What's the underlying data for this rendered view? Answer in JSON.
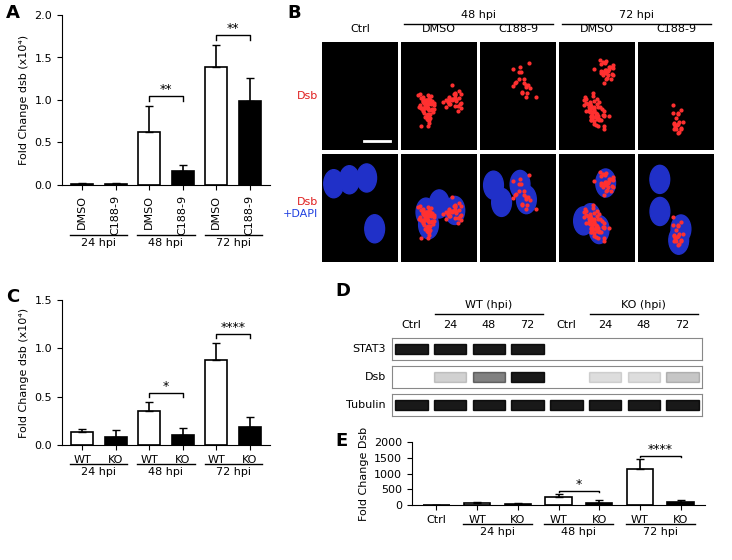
{
  "chart_data": [
    {
      "type": "bar",
      "title": "A",
      "y_label": "Fold Change dsb (x10⁴)",
      "categories": [
        "DMSO",
        "C188-9",
        "DMSO",
        "C188-9",
        "DMSO",
        "C188-9"
      ],
      "values": [
        0.01,
        0.01,
        0.62,
        0.17,
        1.39,
        0.99
      ],
      "errors": [
        0.01,
        0.01,
        0.31,
        0.06,
        0.26,
        0.27
      ],
      "colors": [
        "#ffffff",
        "#000000",
        "#ffffff",
        "#000000",
        "#ffffff",
        "#000000"
      ],
      "ylim": [
        0,
        2.0
      ],
      "yticks": [
        {
          "value": 0,
          "label": "0.0"
        },
        0.5,
        {
          "value": 1,
          "label": "1.0"
        },
        1.5,
        {
          "value": 2,
          "label": "2.0"
        }
      ],
      "groups": [
        {
          "label": "24 hpi",
          "members": [
            0,
            1
          ]
        },
        {
          "label": "48 hpi",
          "members": [
            2,
            3
          ]
        },
        {
          "label": "72 hpi",
          "members": [
            4,
            5
          ]
        }
      ],
      "significance": [
        {
          "text": "**",
          "between": [
            2,
            3
          ]
        },
        {
          "text": "**",
          "between": [
            4,
            5
          ]
        }
      ]
    },
    {
      "type": "bar",
      "title": "C",
      "y_label": "Fold Change dsb (x10⁴)",
      "categories": [
        "WT",
        "KO",
        "WT",
        "KO",
        "WT",
        "KO"
      ],
      "values": [
        0.13,
        0.08,
        0.35,
        0.1,
        0.88,
        0.19
      ],
      "errors": [
        0.04,
        0.08,
        0.1,
        0.08,
        0.18,
        0.1
      ],
      "colors": [
        "#ffffff",
        "#000000",
        "#ffffff",
        "#000000",
        "#ffffff",
        "#000000"
      ],
      "ylim": [
        0,
        1.5
      ],
      "yticks": [
        {
          "value": 0,
          "label": "0.0"
        },
        0.5,
        {
          "value": 1,
          "label": "1.0"
        },
        1.5
      ],
      "groups": [
        {
          "label": "24 hpi",
          "members": [
            0,
            1
          ]
        },
        {
          "label": "48 hpi",
          "members": [
            2,
            3
          ]
        },
        {
          "label": "72 hpi",
          "members": [
            4,
            5
          ]
        }
      ],
      "significance": [
        {
          "text": "*",
          "between": [
            2,
            3
          ]
        },
        {
          "text": "****",
          "between": [
            4,
            5
          ]
        }
      ]
    },
    {
      "type": "bar",
      "title": "E",
      "y_label": "Fold Change Dsb",
      "categories": [
        "Ctrl",
        "WT",
        "KO",
        "WT",
        "KO",
        "WT",
        "KO"
      ],
      "values": [
        2,
        55,
        30,
        260,
        75,
        1130,
        85
      ],
      "errors": [
        0,
        45,
        25,
        80,
        70,
        320,
        60
      ],
      "colors": [
        "#ffffff",
        "#ffffff",
        "#000000",
        "#ffffff",
        "#000000",
        "#ffffff",
        "#000000"
      ],
      "ylim": [
        0,
        2000
      ],
      "yticks": [
        0,
        500,
        1000,
        1500,
        2000
      ],
      "groups": [
        {
          "label": "24 hpi",
          "members": [
            1,
            2
          ]
        },
        {
          "label": "48 hpi",
          "members": [
            3,
            4
          ]
        },
        {
          "label": "72 hpi",
          "members": [
            5,
            6
          ]
        }
      ],
      "significance": [
        {
          "text": "*",
          "between": [
            3,
            4
          ]
        },
        {
          "text": "****",
          "between": [
            5,
            6
          ]
        }
      ]
    }
  ],
  "image_panel": {
    "title": "B",
    "columns": [
      "Ctrl",
      "DMSO",
      "C188-9",
      "DMSO",
      "C188-9"
    ],
    "column_groups": [
      {
        "label": "48 hpi",
        "members": [
          1,
          2
        ]
      },
      {
        "label": "72 hpi",
        "members": [
          3,
          4
        ]
      }
    ],
    "rows": [
      {
        "parts": [
          {
            "text": "Dsb",
            "color": "#e02020"
          }
        ]
      },
      {
        "parts": [
          {
            "text": "Dsb",
            "color": "#e02020"
          },
          {
            "text": "+DAPI",
            "color": "#2040e0"
          }
        ]
      }
    ]
  },
  "blot_panel": {
    "title": "D",
    "lanes": [
      "Ctrl",
      "24",
      "48",
      "72",
      "Ctrl",
      "24",
      "48",
      "72"
    ],
    "lane_groups": [
      {
        "label": "WT (hpi)",
        "members": [
          1,
          2,
          3
        ]
      },
      {
        "label": "KO (hpi)",
        "members": [
          5,
          6,
          7
        ]
      }
    ],
    "rows": [
      {
        "label": "STAT3",
        "band_intensity": [
          1,
          1,
          1,
          1,
          0,
          0,
          0,
          0
        ]
      },
      {
        "label": "Dsb",
        "band_intensity": [
          0,
          0.2,
          0.55,
          1,
          0,
          0.15,
          0.15,
          0.25
        ]
      },
      {
        "label": "Tubulin",
        "band_intensity": [
          1,
          1,
          1,
          1,
          1,
          1,
          1,
          1
        ]
      }
    ]
  }
}
